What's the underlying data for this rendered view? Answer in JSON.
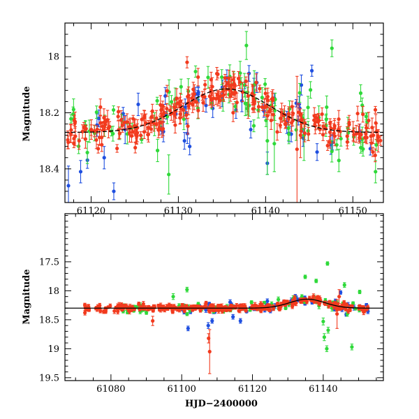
{
  "colors": {
    "blue": "#1f4fe0",
    "green": "#2fd93a",
    "red": "#f23a1e"
  },
  "chart_data": [
    {
      "type": "scatter",
      "name": "zoom",
      "title": "",
      "xlabel": "",
      "ylabel": "Magnitude",
      "xlim": [
        61117,
        61153.5
      ],
      "ylim": [
        18.52,
        17.88
      ],
      "inverted_y": true,
      "xticks": [
        61120,
        61130,
        61140,
        61150
      ],
      "xtick_labels": [
        "61120",
        "61130",
        "61140",
        "61150"
      ],
      "yticks": [
        18,
        18.2,
        18.4
      ],
      "ytick_labels": [
        "18",
        "18.2",
        "18.4"
      ],
      "trend": {
        "style": "dashed",
        "type": "gaussian",
        "base": 18.27,
        "amp": 0.155,
        "center": 61135.5,
        "sigma": 5.0
      },
      "series": [
        {
          "name": "blue",
          "color_key": "blue",
          "seed": 11,
          "points": [
            [
              61117.4,
              18.46,
              0.07
            ],
            [
              61118.8,
              18.41,
              0.04
            ],
            [
              61120.9,
              18.22,
              0.03
            ],
            [
              61121.5,
              18.36,
              0.04
            ],
            [
              61122.6,
              18.48,
              0.03
            ],
            [
              61123.9,
              18.26,
              0.05
            ],
            [
              61125.4,
              18.17,
              0.04
            ],
            [
              61128.5,
              18.14,
              0.03
            ],
            [
              61130.7,
              18.3,
              0.03
            ],
            [
              61131.3,
              18.32,
              0.03
            ],
            [
              61136.6,
              18.19,
              0.03
            ],
            [
              61138.3,
              18.26,
              0.03
            ],
            [
              61140.2,
              18.38,
              0.04
            ],
            [
              61144.3,
              18.29,
              0.03
            ],
            [
              61145.3,
              18.05,
              0.02
            ],
            [
              61145.9,
              18.34,
              0.03
            ],
            [
              61150.8,
              18.27,
              0.03
            ]
          ],
          "random_count": 38,
          "xrange": [
            61117.3,
            61153
          ],
          "scatter_sd": 0.045,
          "err_range": [
            0.012,
            0.04
          ]
        },
        {
          "name": "green",
          "color_key": "green",
          "seed": 23,
          "points": [
            [
              61128.9,
              18.42,
              0.07
            ],
            [
              61137.8,
              17.96,
              0.05
            ],
            [
              61138.7,
              18.1,
              0.05
            ],
            [
              61140.2,
              18.3,
              0.12
            ],
            [
              61141.0,
              18.31,
              0.1
            ],
            [
              61144.4,
              18.28,
              0.09
            ],
            [
              61147.0,
              18.18,
              0.04
            ],
            [
              61147.6,
              17.97,
              0.03
            ],
            [
              61148.4,
              18.37,
              0.04
            ],
            [
              61150.9,
              18.13,
              0.03
            ],
            [
              61152.6,
              18.41,
              0.04
            ]
          ],
          "random_count": 85,
          "xrange": [
            61117.3,
            61153.2
          ],
          "scatter_sd": 0.045,
          "err_range": [
            0.012,
            0.045
          ]
        },
        {
          "name": "red",
          "color_key": "red",
          "seed": 37,
          "points": [
            [
              61131.0,
              18.02,
              0.02
            ],
            [
              61138.0,
              18.14,
              0.08
            ],
            [
              61143.6,
              18.33,
              0.26
            ],
            [
              61144.0,
              18.28,
              0.08
            ],
            [
              61152.9,
              18.3,
              0.04
            ]
          ],
          "random_count": 270,
          "xrange": [
            61117.3,
            61153.2
          ],
          "scatter_sd": 0.03,
          "err_range": [
            0.012,
            0.035
          ]
        }
      ]
    },
    {
      "type": "scatter",
      "name": "full",
      "title": "",
      "xlabel": "HJD−2400000",
      "ylabel": "Magnitude",
      "xlim": [
        61067,
        61157
      ],
      "ylim": [
        19.55,
        16.67
      ],
      "inverted_y": true,
      "xticks": [
        61080,
        61100,
        61120,
        61140
      ],
      "xtick_labels": [
        "61080",
        "61100",
        "61120",
        "61140"
      ],
      "yticks": [
        17.5,
        18,
        18.5,
        19,
        19.5
      ],
      "ytick_labels": [
        "17.5",
        "18",
        "18.5",
        "19",
        "19.5"
      ],
      "trend": {
        "style": "solid",
        "type": "gaussian",
        "base": 18.3,
        "amp": 0.155,
        "center": 61135.5,
        "sigma": 5.0
      },
      "series": [
        {
          "name": "blue",
          "color_key": "blue",
          "seed": 51,
          "points": [
            [
              61101.8,
              18.65,
              0.04
            ],
            [
              61107.5,
              18.6,
              0.05
            ],
            [
              61108.6,
              18.52,
              0.04
            ],
            [
              61114.5,
              18.45,
              0.04
            ],
            [
              61116.6,
              18.52,
              0.04
            ],
            [
              61124.2,
              18.18,
              0.04
            ],
            [
              61134.8,
              18.12,
              0.03
            ],
            [
              61144.9,
              18.03,
              0.03
            ],
            [
              61146.5,
              18.41,
              0.03
            ],
            [
              61150.3,
              18.27,
              0.03
            ]
          ],
          "random_count": 55,
          "xrange": [
            61100,
            61153
          ],
          "scatter_sd": 0.04,
          "err_range": [
            0.02,
            0.045
          ]
        },
        {
          "name": "green",
          "color_key": "green",
          "seed": 63,
          "points": [
            [
              61097.6,
              18.1,
              0.05
            ],
            [
              61101.5,
              17.98,
              0.04
            ],
            [
              61134.9,
              17.76,
              0.03
            ],
            [
              61138.0,
              17.83,
              0.03
            ],
            [
              61138.8,
              18.26,
              0.05
            ],
            [
              61140.0,
              18.53,
              0.06
            ],
            [
              61140.3,
              18.8,
              0.06
            ],
            [
              61141.0,
              19.0,
              0.05
            ],
            [
              61141.2,
              17.53,
              0.03
            ],
            [
              61141.4,
              18.68,
              0.05
            ],
            [
              61142.5,
              18.3,
              0.05
            ],
            [
              61146.0,
              17.9,
              0.04
            ],
            [
              61146.8,
              18.4,
              0.04
            ],
            [
              61148.1,
              18.97,
              0.05
            ],
            [
              61150.3,
              18.02,
              0.03
            ]
          ],
          "random_count": 70,
          "xrange": [
            61083,
            61153
          ],
          "scatter_sd": 0.045,
          "err_range": [
            0.02,
            0.045
          ]
        },
        {
          "name": "red",
          "color_key": "red",
          "seed": 77,
          "points": [
            [
              61072.8,
              18.3,
              0.05
            ],
            [
              61091.8,
              18.52,
              0.08
            ],
            [
              61107.9,
              19.05,
              0.38
            ],
            [
              61107.6,
              18.82,
              0.08
            ],
            [
              61143.9,
              18.4,
              0.25
            ],
            [
              61144.5,
              18.1,
              0.12
            ]
          ],
          "random_count": 290,
          "xrange": [
            61072.5,
            61153
          ],
          "scatter_sd": 0.03,
          "err_range": [
            0.02,
            0.045
          ]
        }
      ]
    }
  ]
}
